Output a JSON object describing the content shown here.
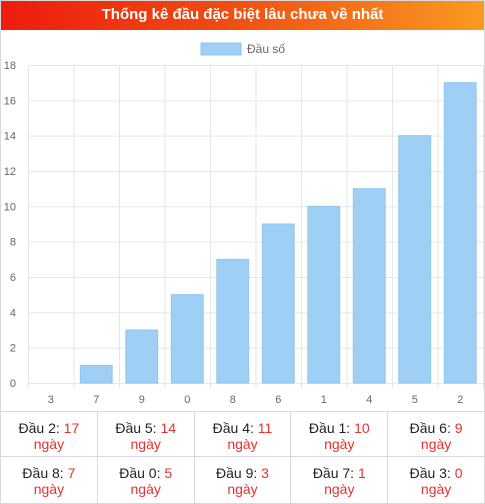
{
  "header": {
    "title": "Thống kê đầu đặc biệt lâu chưa về nhất"
  },
  "colors": {
    "bar": "#9fcff4",
    "bar_edge": "#8ec6f1",
    "accent": "#e8312d",
    "header_start": "#ee1c0e",
    "header_end": "#f99a20"
  },
  "chart_data": {
    "type": "bar",
    "categories": [
      "3",
      "7",
      "9",
      "0",
      "8",
      "6",
      "1",
      "4",
      "5",
      "2"
    ],
    "series": [
      {
        "name": "Đầu số",
        "values": [
          0,
          1,
          3,
          5,
          7,
          9,
          10,
          11,
          14,
          17
        ]
      }
    ],
    "ylim": [
      0,
      18
    ],
    "yticks": [
      0,
      2,
      4,
      6,
      8,
      10,
      12,
      14,
      16,
      18
    ],
    "grid": true,
    "legend": "top-center"
  },
  "stats": {
    "day_unit": "ngày",
    "rows": [
      [
        {
          "label": "Đầu 2:",
          "value": "17"
        },
        {
          "label": "Đầu 5:",
          "value": "14"
        },
        {
          "label": "Đầu 4:",
          "value": "11"
        },
        {
          "label": "Đầu 1:",
          "value": "10"
        },
        {
          "label": "Đầu 6:",
          "value": "9"
        }
      ],
      [
        {
          "label": "Đầu 8:",
          "value": "7"
        },
        {
          "label": "Đầu 0:",
          "value": "5"
        },
        {
          "label": "Đầu 9:",
          "value": "3"
        },
        {
          "label": "Đầu 7:",
          "value": "1"
        },
        {
          "label": "Đầu 3:",
          "value": "0"
        }
      ]
    ]
  }
}
